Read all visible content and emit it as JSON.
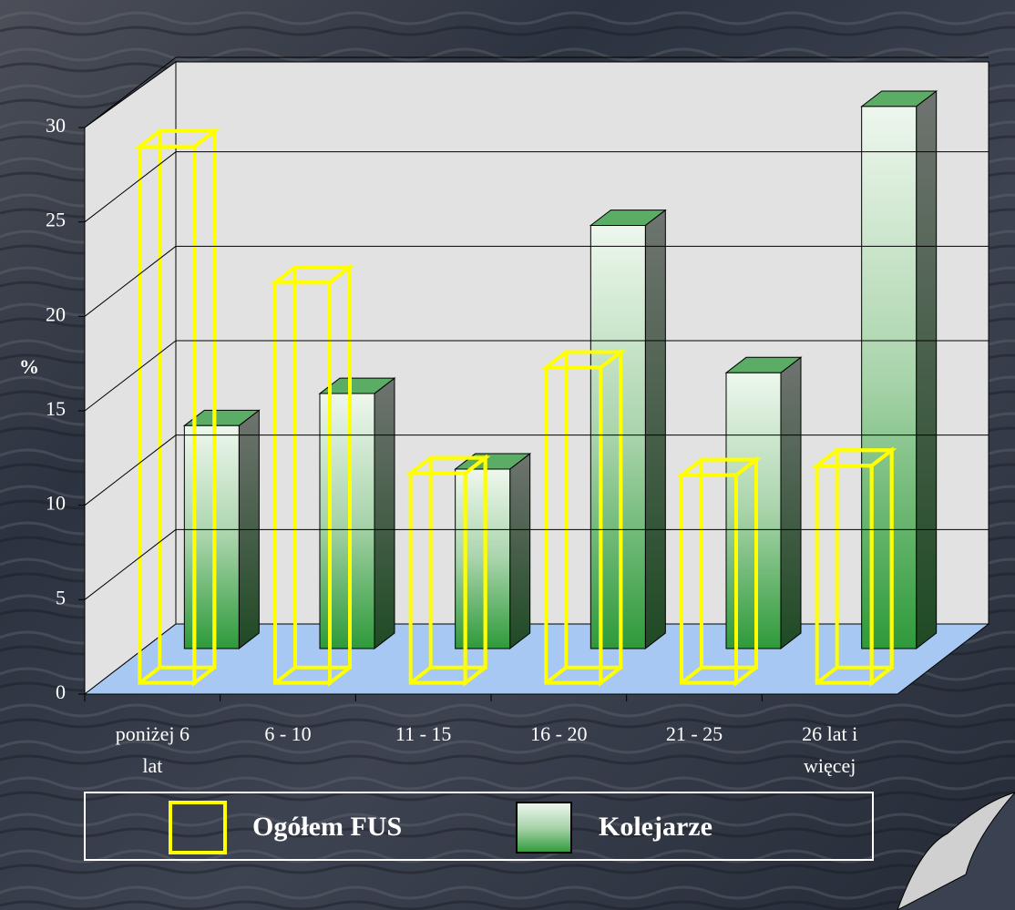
{
  "chart_data": {
    "type": "bar3d",
    "y_label": "%",
    "categories": [
      "poniżej 6 lat",
      "6 - 10",
      "11 - 15",
      "16 - 20",
      "21 - 25",
      "26 lat i więcej"
    ],
    "series": [
      {
        "name": "Ogółem FUS",
        "color": "#ffff00",
        "values": [
          28.4,
          21.2,
          11.1,
          16.7,
          11.0,
          11.5
        ]
      },
      {
        "name": "Kolejarze",
        "color": "#2e9a3a",
        "values": [
          11.8,
          13.5,
          9.5,
          22.4,
          14.6,
          28.7
        ]
      }
    ],
    "ylim": [
      0,
      30
    ],
    "yticks": [
      0,
      5,
      10,
      15,
      20,
      25,
      30
    ],
    "grid": true,
    "legend": "bottom"
  }
}
